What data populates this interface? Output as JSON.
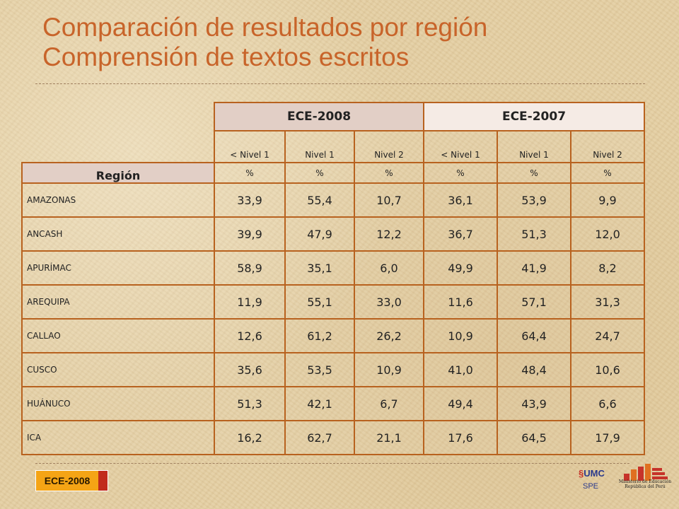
{
  "title": {
    "line1": "Comparación de resultados por región",
    "line2": "Comprensión de textos escritos"
  },
  "table": {
    "year1": "ECE-2008",
    "year2": "ECE-2007",
    "region_header": "Región",
    "levels": [
      "< Nivel 1",
      "Nivel 1",
      "Nivel 2",
      "< Nivel 1",
      "Nivel 1",
      "Nivel 2"
    ],
    "units": [
      "%",
      "%",
      "%",
      "%",
      "%",
      "%"
    ],
    "rows": [
      {
        "region": "AMAZONAS",
        "values": [
          "33,9",
          "55,4",
          "10,7",
          "36,1",
          "53,9",
          "9,9"
        ]
      },
      {
        "region": "ANCASH",
        "values": [
          "39,9",
          "47,9",
          "12,2",
          "36,7",
          "51,3",
          "12,0"
        ]
      },
      {
        "region": "APURÍMAC",
        "values": [
          "58,9",
          "35,1",
          "6,0",
          "49,9",
          "41,9",
          "8,2"
        ]
      },
      {
        "region": "AREQUIPA",
        "values": [
          "11,9",
          "55,1",
          "33,0",
          "11,6",
          "57,1",
          "31,3"
        ]
      },
      {
        "region": "CALLAO",
        "values": [
          "12,6",
          "61,2",
          "26,2",
          "10,9",
          "64,4",
          "24,7"
        ]
      },
      {
        "region": "CUSCO",
        "values": [
          "35,6",
          "53,5",
          "10,9",
          "41,0",
          "48,4",
          "10,6"
        ]
      },
      {
        "region": "HUÁNUCO",
        "values": [
          "51,3",
          "42,1",
          "6,7",
          "49,4",
          "43,9",
          "6,6"
        ]
      },
      {
        "region": "ICA",
        "values": [
          "16,2",
          "62,7",
          "21,1",
          "17,6",
          "64,5",
          "17,9"
        ]
      }
    ]
  },
  "footer": {
    "badge": "ECE-2008",
    "umc_logo": "UMC",
    "spe": "SPE",
    "ministry_line1": "Ministerio de Educación",
    "ministry_line2": "República del Perú"
  },
  "colors": {
    "title": "#c8642a",
    "table_border": "#b8621f",
    "badge_orange": "#f5a415",
    "badge_red": "#c12b1c",
    "logo_red": "#c6332a"
  },
  "icons": [
    "umc-logo-icon",
    "ministry-building-icon"
  ]
}
